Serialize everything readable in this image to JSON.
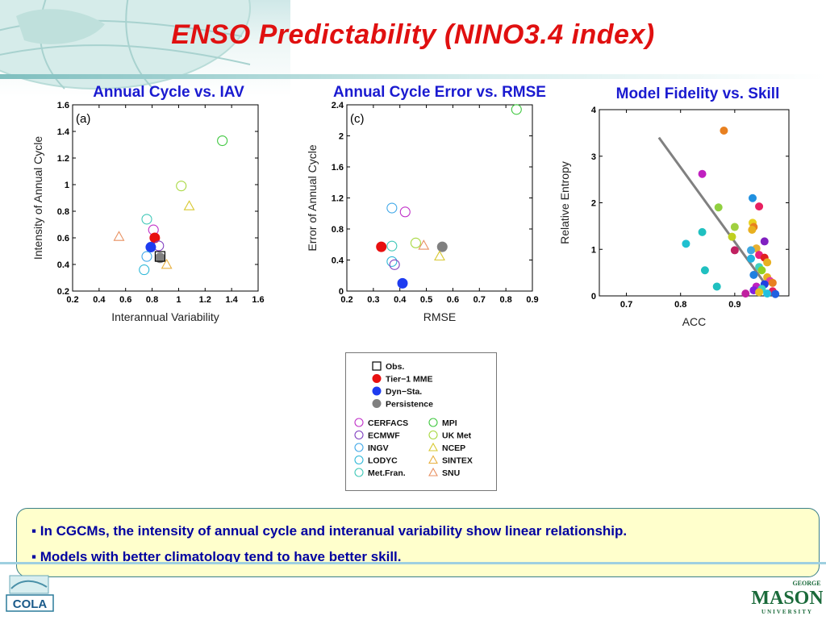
{
  "slide": {
    "title": "ENSO Predictability (NINO3.4 index)",
    "bullets": [
      "▪ In CGCMs, the intensity of annual cycle and interanual variability show linear relationship.",
      "▪ Models with better climatology tend to have better skill."
    ],
    "logos": {
      "left": "COLA",
      "right_top": "GEORGE",
      "right_main": "MASON",
      "right_bottom": "UNIVERSITY"
    }
  },
  "colors": {
    "title": "#e01010",
    "panel_title": "#1a1ad0",
    "tier1_mme": "#e81010",
    "dyn_sta": "#1e3cf0",
    "persistence": "#808080",
    "CERFACS": "#c030c8",
    "ECMWF": "#8040c0",
    "INGV": "#40a8e8",
    "LODYC": "#30b8d8",
    "MetFran": "#40c8b8",
    "MPI": "#40c840",
    "UKMet": "#a8d840",
    "NCEP": "#d8c830",
    "SINTEX": "#e8b040",
    "SNU": "#e89060",
    "fit_line": "#808080"
  },
  "legend": {
    "group1": [
      {
        "label": "Obs.",
        "marker": "square-open",
        "color": "#000000"
      },
      {
        "label": "Tier−1  MME",
        "marker": "circle-filled",
        "color": "#e81010"
      },
      {
        "label": "Dyn−Sta.",
        "marker": "circle-filled",
        "color": "#1e3cf0"
      },
      {
        "label": "Persistence",
        "marker": "circle-filled",
        "color": "#808080"
      }
    ],
    "col1": [
      {
        "label": "CERFACS",
        "marker": "circle-open",
        "color": "#c030c8"
      },
      {
        "label": "ECMWF",
        "marker": "circle-open",
        "color": "#8040c0"
      },
      {
        "label": "INGV",
        "marker": "circle-open",
        "color": "#40a8e8"
      },
      {
        "label": "LODYC",
        "marker": "circle-open",
        "color": "#30b8d8"
      },
      {
        "label": "Met.Fran.",
        "marker": "circle-open",
        "color": "#40c8b8"
      }
    ],
    "col2": [
      {
        "label": "MPI",
        "marker": "circle-open",
        "color": "#40c840"
      },
      {
        "label": "UK  Met",
        "marker": "circle-open",
        "color": "#a8d840"
      },
      {
        "label": "NCEP",
        "marker": "triangle-open",
        "color": "#d8c830"
      },
      {
        "label": "SINTEX",
        "marker": "triangle-open",
        "color": "#e8b040"
      },
      {
        "label": "SNU",
        "marker": "triangle-open",
        "color": "#e89060"
      }
    ]
  },
  "chart_data": [
    {
      "type": "scatter",
      "title": "Annual Cycle vs. IAV",
      "panel_label": "(a)",
      "xlabel": "Interannual Variability",
      "ylabel": "Intensity of Annual Cycle",
      "xlim": [
        0.2,
        1.6
      ],
      "ylim": [
        0.2,
        1.6
      ],
      "xticks": [
        "0.2",
        "0.4",
        "0.6",
        "0.8",
        "1",
        "1.2",
        "1.4",
        "1.6"
      ],
      "yticks": [
        "0.2",
        "0.4",
        "0.6",
        "0.8",
        "1",
        "1.2",
        "1.4",
        "1.6"
      ],
      "grid": false,
      "points": [
        {
          "x": 1.33,
          "y": 1.33,
          "marker": "circle-open",
          "color": "#40c840"
        },
        {
          "x": 1.02,
          "y": 0.99,
          "marker": "circle-open",
          "color": "#a8d840"
        },
        {
          "x": 1.08,
          "y": 0.84,
          "marker": "triangle-open",
          "color": "#d8c830"
        },
        {
          "x": 0.76,
          "y": 0.74,
          "marker": "circle-open",
          "color": "#40c8b8"
        },
        {
          "x": 0.81,
          "y": 0.66,
          "marker": "circle-open",
          "color": "#c030c8"
        },
        {
          "x": 0.55,
          "y": 0.61,
          "marker": "triangle-open",
          "color": "#e89060"
        },
        {
          "x": 0.82,
          "y": 0.6,
          "marker": "circle-filled",
          "color": "#e81010"
        },
        {
          "x": 0.85,
          "y": 0.54,
          "marker": "circle-open",
          "color": "#8040c0"
        },
        {
          "x": 0.79,
          "y": 0.53,
          "marker": "circle-filled",
          "color": "#1e3cf0"
        },
        {
          "x": 0.76,
          "y": 0.46,
          "marker": "circle-open",
          "color": "#40a8e8"
        },
        {
          "x": 0.86,
          "y": 0.45,
          "marker": "circle-filled",
          "color": "#808080"
        },
        {
          "x": 0.86,
          "y": 0.46,
          "marker": "square-open",
          "color": "#000000"
        },
        {
          "x": 0.91,
          "y": 0.4,
          "marker": "triangle-open",
          "color": "#e8b040"
        },
        {
          "x": 0.74,
          "y": 0.36,
          "marker": "circle-open",
          "color": "#30b8d8"
        }
      ]
    },
    {
      "type": "scatter",
      "title": "Annual Cycle Error vs. RMSE",
      "panel_label": "(c)",
      "xlabel": "RMSE",
      "ylabel": "Error of Annual Cycle",
      "xlim": [
        0.2,
        0.9
      ],
      "ylim": [
        0,
        2.4
      ],
      "xticks": [
        "0.2",
        "0.3",
        "0.4",
        "0.5",
        "0.6",
        "0.7",
        "0.8",
        "0.9"
      ],
      "yticks": [
        "0",
        "0.4",
        "0.8",
        "1.2",
        "1.6",
        "2",
        "2.4"
      ],
      "grid": false,
      "points": [
        {
          "x": 0.84,
          "y": 2.34,
          "marker": "circle-open",
          "color": "#40c840"
        },
        {
          "x": 0.37,
          "y": 1.07,
          "marker": "circle-open",
          "color": "#40a8e8"
        },
        {
          "x": 0.42,
          "y": 1.02,
          "marker": "circle-open",
          "color": "#c030c8"
        },
        {
          "x": 0.46,
          "y": 0.62,
          "marker": "circle-open",
          "color": "#a8d840"
        },
        {
          "x": 0.49,
          "y": 0.59,
          "marker": "triangle-open",
          "color": "#e89060"
        },
        {
          "x": 0.37,
          "y": 0.58,
          "marker": "circle-open",
          "color": "#40c8b8"
        },
        {
          "x": 0.33,
          "y": 0.57,
          "marker": "circle-filled",
          "color": "#e81010"
        },
        {
          "x": 0.56,
          "y": 0.57,
          "marker": "circle-filled",
          "color": "#808080"
        },
        {
          "x": 0.55,
          "y": 0.45,
          "marker": "triangle-open",
          "color": "#d8c830"
        },
        {
          "x": 0.37,
          "y": 0.38,
          "marker": "circle-open",
          "color": "#30b8d8"
        },
        {
          "x": 0.38,
          "y": 0.34,
          "marker": "circle-open",
          "color": "#8040c0"
        },
        {
          "x": 0.41,
          "y": 0.1,
          "marker": "circle-filled",
          "color": "#1e3cf0"
        }
      ]
    },
    {
      "type": "scatter",
      "title": "Model Fidelity vs. Skill",
      "panel_label": "",
      "xlabel": "ACC",
      "ylabel": "Relative Entropy",
      "xlim": [
        0.65,
        1.0
      ],
      "ylim": [
        0,
        4
      ],
      "xticks": [
        "0.7",
        "0.8",
        "0.9"
      ],
      "xtick_values": [
        0.7,
        0.8,
        0.9
      ],
      "yticks": [
        "0",
        "1",
        "2",
        "3",
        "4"
      ],
      "grid": false,
      "fit_line": {
        "x": [
          0.76,
          0.96
        ],
        "y": [
          3.4,
          0.2
        ],
        "color": "#808080"
      },
      "points": [
        {
          "x": 0.88,
          "y": 3.55,
          "color": "#e88020"
        },
        {
          "x": 0.84,
          "y": 2.62,
          "color": "#c020c0"
        },
        {
          "x": 0.933,
          "y": 2.1,
          "color": "#2090e0"
        },
        {
          "x": 0.945,
          "y": 1.92,
          "color": "#e82060"
        },
        {
          "x": 0.87,
          "y": 1.9,
          "color": "#90d040"
        },
        {
          "x": 0.933,
          "y": 1.57,
          "color": "#e8d020"
        },
        {
          "x": 0.935,
          "y": 1.48,
          "color": "#e88020"
        },
        {
          "x": 0.9,
          "y": 1.48,
          "color": "#a0d040"
        },
        {
          "x": 0.932,
          "y": 1.42,
          "color": "#e8b020"
        },
        {
          "x": 0.84,
          "y": 1.37,
          "color": "#20c0c0"
        },
        {
          "x": 0.895,
          "y": 1.27,
          "color": "#c0d020"
        },
        {
          "x": 0.955,
          "y": 1.17,
          "color": "#8020c0"
        },
        {
          "x": 0.81,
          "y": 1.12,
          "color": "#20c0d0"
        },
        {
          "x": 0.94,
          "y": 1.02,
          "color": "#e8b030"
        },
        {
          "x": 0.93,
          "y": 0.98,
          "color": "#40a8e0"
        },
        {
          "x": 0.9,
          "y": 0.98,
          "color": "#c02060"
        },
        {
          "x": 0.945,
          "y": 0.88,
          "color": "#e82080"
        },
        {
          "x": 0.955,
          "y": 0.82,
          "color": "#e02020"
        },
        {
          "x": 0.93,
          "y": 0.8,
          "color": "#20b0e0"
        },
        {
          "x": 0.96,
          "y": 0.72,
          "color": "#e8b020"
        },
        {
          "x": 0.945,
          "y": 0.62,
          "color": "#40d0c0"
        },
        {
          "x": 0.95,
          "y": 0.55,
          "color": "#90d020"
        },
        {
          "x": 0.845,
          "y": 0.55,
          "color": "#20c0c0"
        },
        {
          "x": 0.935,
          "y": 0.45,
          "color": "#2080e0"
        },
        {
          "x": 0.96,
          "y": 0.4,
          "color": "#e8b020"
        },
        {
          "x": 0.965,
          "y": 0.32,
          "color": "#e040a0"
        },
        {
          "x": 0.97,
          "y": 0.28,
          "color": "#e88020"
        },
        {
          "x": 0.955,
          "y": 0.25,
          "color": "#2040e0"
        },
        {
          "x": 0.94,
          "y": 0.2,
          "color": "#c020c0"
        },
        {
          "x": 0.867,
          "y": 0.2,
          "color": "#20c0c0"
        },
        {
          "x": 0.95,
          "y": 0.15,
          "color": "#40d0c0"
        },
        {
          "x": 0.935,
          "y": 0.12,
          "color": "#8020e0"
        },
        {
          "x": 0.97,
          "y": 0.1,
          "color": "#e02060"
        },
        {
          "x": 0.945,
          "y": 0.08,
          "color": "#e8c020"
        },
        {
          "x": 0.92,
          "y": 0.05,
          "color": "#c020a0"
        },
        {
          "x": 0.96,
          "y": 0.05,
          "color": "#20c0e0"
        },
        {
          "x": 0.975,
          "y": 0.04,
          "color": "#2060e0"
        }
      ]
    }
  ]
}
